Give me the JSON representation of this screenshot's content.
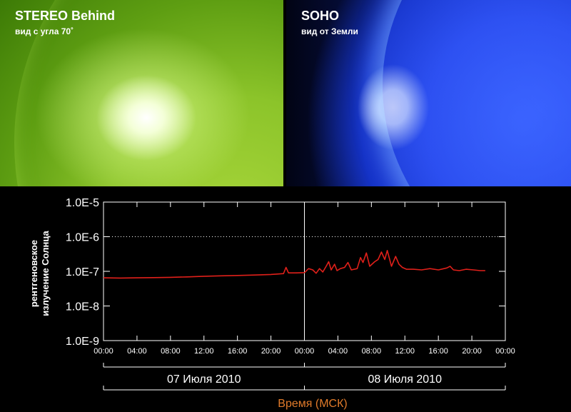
{
  "panels": {
    "left": {
      "title": "STEREO Behind",
      "subtitle": "вид с угла 70˚",
      "color": "#8cc42a"
    },
    "right": {
      "title": "SOHO",
      "subtitle": "вид от Земли",
      "color": "#1533c8"
    }
  },
  "chart_data": {
    "type": "line",
    "ylabel_line1": "рентгеновское",
    "ylabel_line2": "излучение Солнца",
    "xlabel": "Время (МСК)",
    "xlabel_color": "#e07a2a",
    "y_scale": "log",
    "ylim": [
      1e-09,
      1e-05
    ],
    "y_ticks": [
      1e-05,
      1e-06,
      1e-07,
      1e-08,
      1e-09
    ],
    "y_tick_labels": [
      "1.0E-5",
      "1.0E-6",
      "1.0E-7",
      "1.0E-8",
      "1.0E-9"
    ],
    "xlim_hours": [
      0,
      48
    ],
    "x_tick_labels": [
      "00:00",
      "04:00",
      "08:00",
      "12:00",
      "16:00",
      "20:00",
      "00:00",
      "04:00",
      "08:00",
      "12:00",
      "16:00",
      "20:00",
      "00:00"
    ],
    "date_labels": [
      "07 Июля 2010",
      "08 Июля 2010"
    ],
    "dotted_grid_at": [
      1e-06
    ],
    "series": [
      {
        "color": "#e0201a",
        "points": [
          [
            0,
            6.5e-08
          ],
          [
            2,
            6.4e-08
          ],
          [
            4,
            6.5e-08
          ],
          [
            6,
            6.6e-08
          ],
          [
            8,
            6.7e-08
          ],
          [
            10,
            6.9e-08
          ],
          [
            12,
            7.2e-08
          ],
          [
            14,
            7.4e-08
          ],
          [
            16,
            7.6e-08
          ],
          [
            18,
            7.8e-08
          ],
          [
            20,
            8.1e-08
          ],
          [
            21.5,
            8.6e-08
          ],
          [
            21.8,
            1.3e-07
          ],
          [
            22.1,
            9e-08
          ],
          [
            23,
            9e-08
          ],
          [
            24,
            9.2e-08
          ],
          [
            24.5,
            1.2e-07
          ],
          [
            25,
            1.1e-07
          ],
          [
            25.4,
            8.8e-08
          ],
          [
            25.8,
            1.2e-07
          ],
          [
            26.2,
            9.6e-08
          ],
          [
            26.6,
            1.4e-07
          ],
          [
            26.9,
            1.9e-07
          ],
          [
            27.2,
            1.1e-07
          ],
          [
            27.6,
            1.6e-07
          ],
          [
            27.9,
            1.05e-07
          ],
          [
            28.3,
            1.2e-07
          ],
          [
            28.8,
            1.3e-07
          ],
          [
            29.2,
            1.8e-07
          ],
          [
            29.6,
            1.1e-07
          ],
          [
            30.3,
            1.2e-07
          ],
          [
            30.7,
            2.5e-07
          ],
          [
            31.0,
            1.8e-07
          ],
          [
            31.4,
            3.4e-07
          ],
          [
            31.8,
            1.4e-07
          ],
          [
            32.4,
            1.9e-07
          ],
          [
            32.8,
            2.2e-07
          ],
          [
            33.2,
            3.6e-07
          ],
          [
            33.6,
            2.2e-07
          ],
          [
            33.9,
            4e-07
          ],
          [
            34.4,
            1.4e-07
          ],
          [
            34.9,
            2.7e-07
          ],
          [
            35.3,
            1.6e-07
          ],
          [
            35.7,
            1.3e-07
          ],
          [
            36.2,
            1.15e-07
          ],
          [
            37,
            1.15e-07
          ],
          [
            38,
            1.1e-07
          ],
          [
            39,
            1.2e-07
          ],
          [
            40,
            1.1e-07
          ],
          [
            41,
            1.25e-07
          ],
          [
            41.4,
            1.4e-07
          ],
          [
            41.8,
            1.1e-07
          ],
          [
            42.5,
            1.05e-07
          ],
          [
            43.3,
            1.15e-07
          ],
          [
            44.2,
            1.1e-07
          ],
          [
            45,
            1.05e-07
          ],
          [
            45.6,
            1.05e-07
          ]
        ]
      }
    ]
  }
}
